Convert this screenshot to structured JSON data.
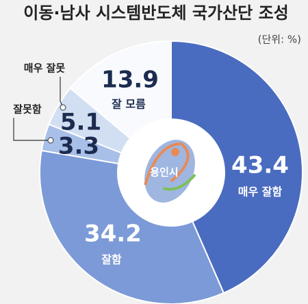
{
  "chart_data": {
    "type": "donut",
    "title": "이동·남사 시스템반도체 국가산단 조성",
    "subtitle": "(단위: %)",
    "center_label": "용인시",
    "categories": [
      "매우 잘함",
      "잘함",
      "잘못함",
      "매우 잘못",
      "잘 모름"
    ],
    "values": [
      43.4,
      34.2,
      3.3,
      5.1,
      13.9
    ],
    "colors": [
      "#4a6cc0",
      "#7c9ad7",
      "#a8bfe8",
      "#d2dff3",
      "#f8fafd"
    ]
  }
}
